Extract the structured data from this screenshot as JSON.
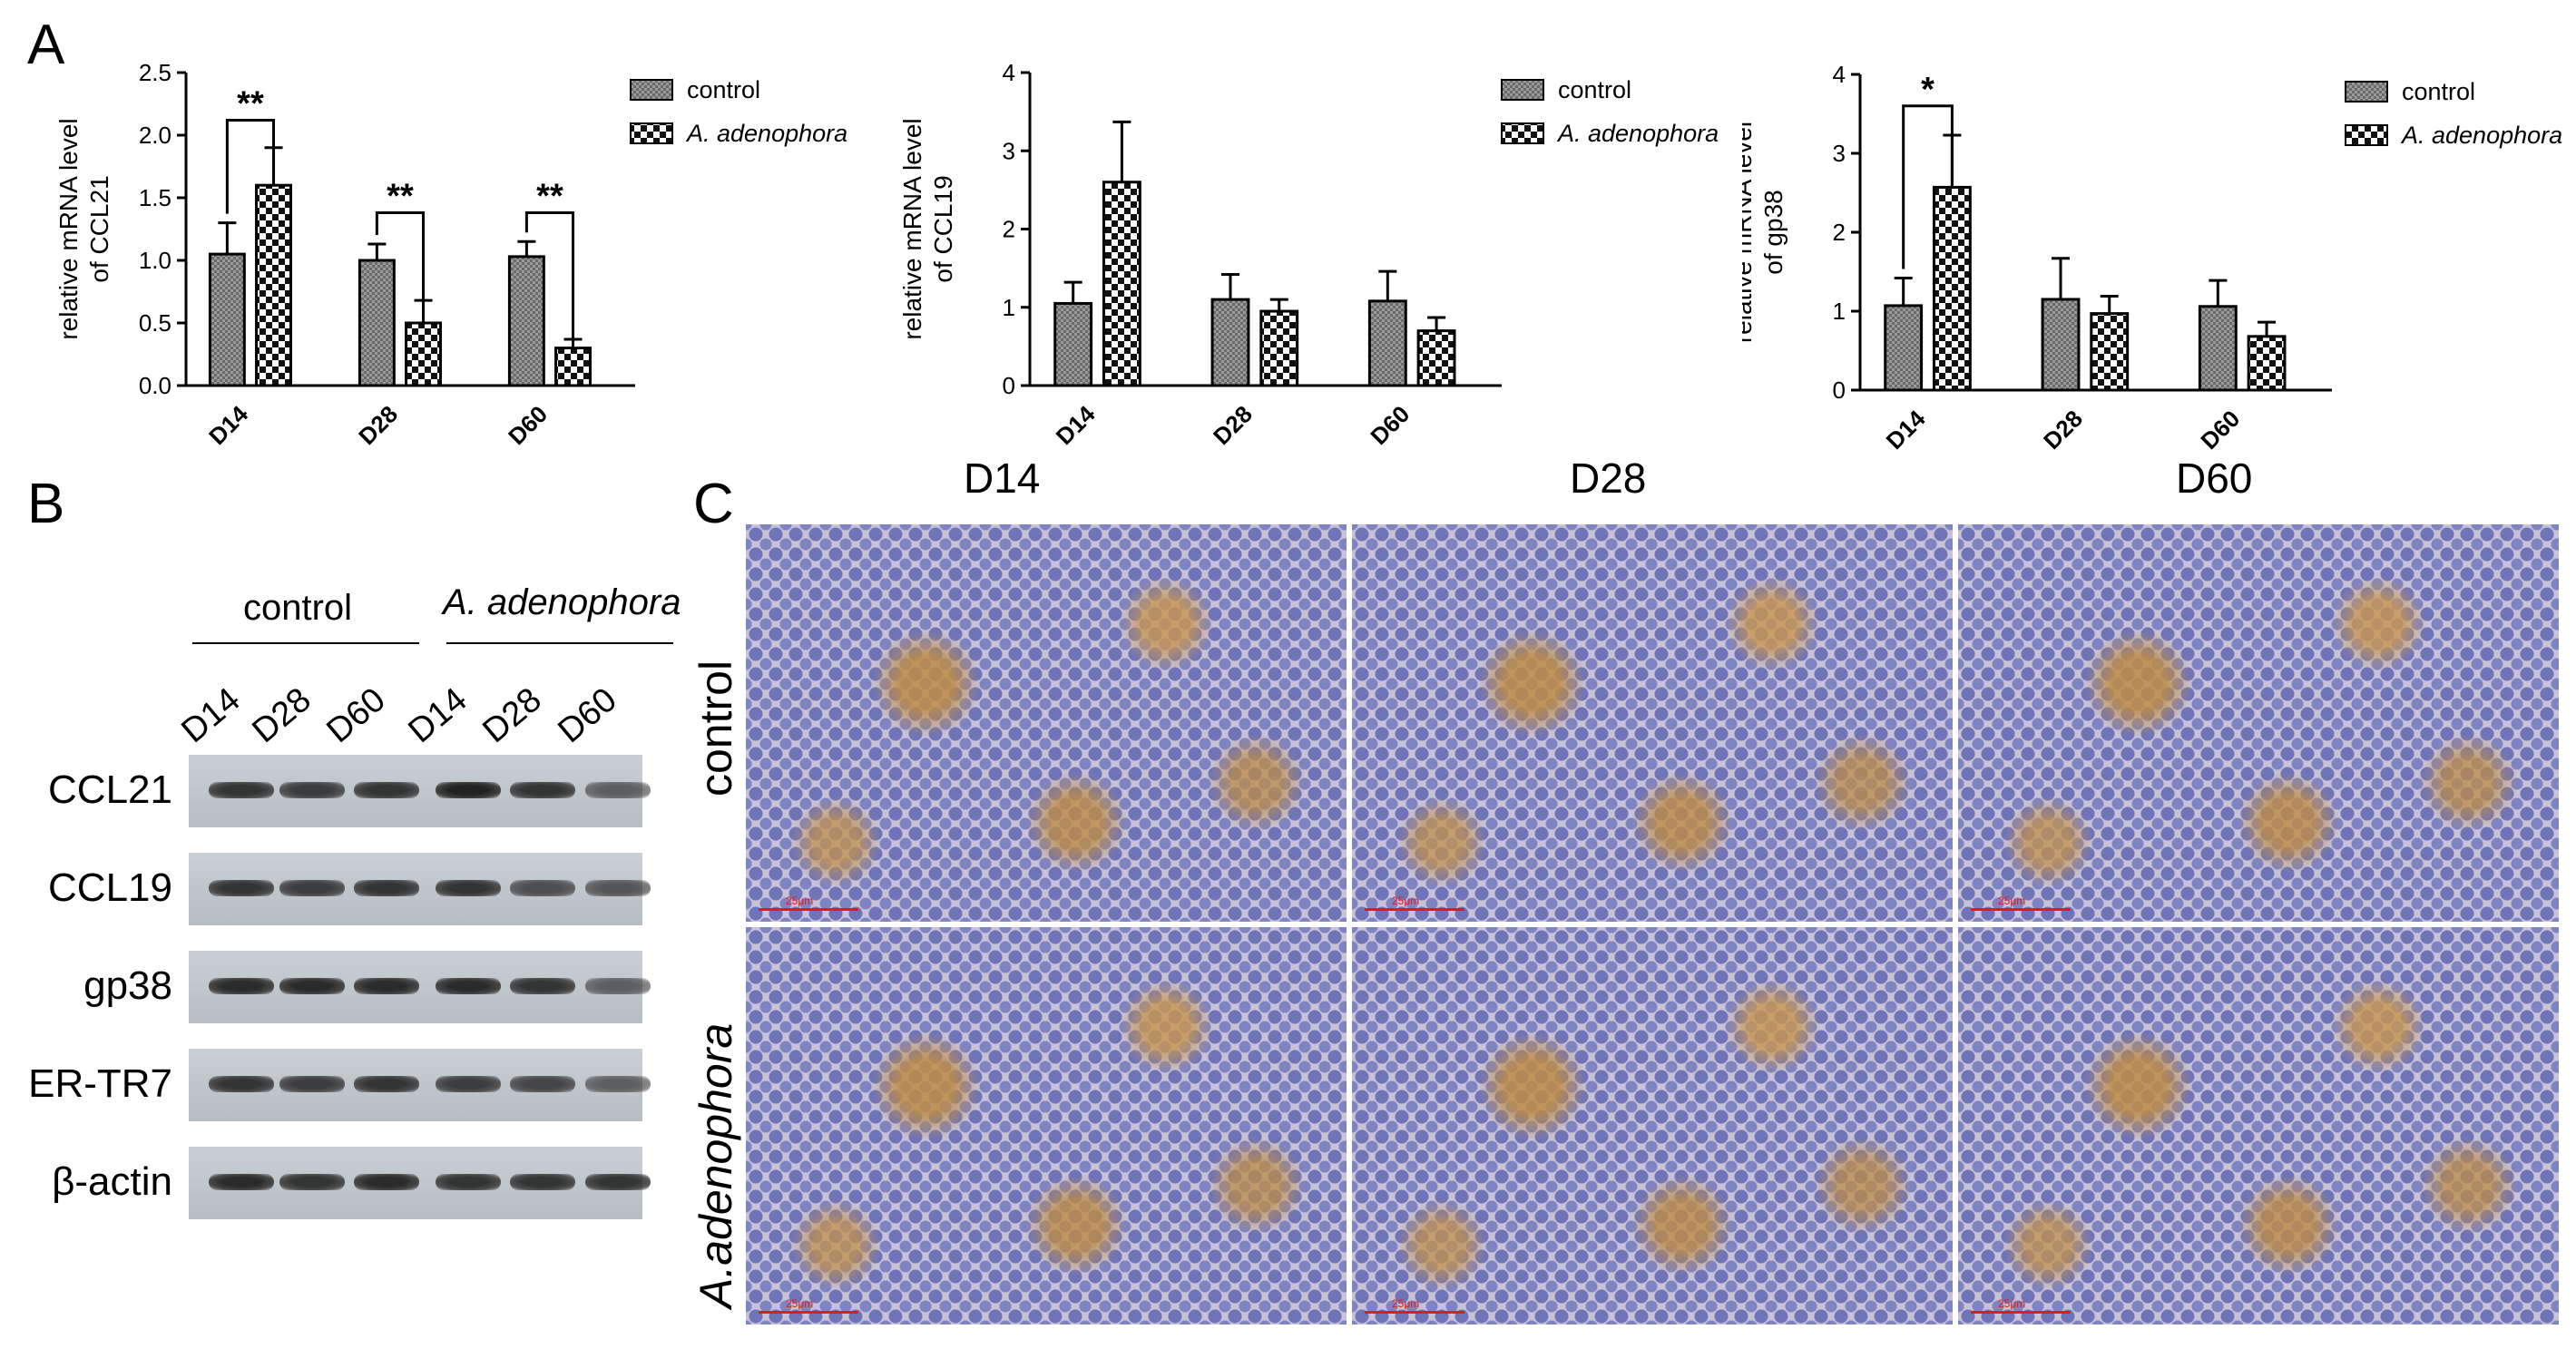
{
  "panel_labels": {
    "a": "A",
    "b": "B",
    "c": "C"
  },
  "colors": {
    "control_fill": "#8f8f8f",
    "treated_fill": "#ffffff",
    "stroke": "#000000",
    "scalebar": "#e21a1a"
  },
  "chart_data": [
    {
      "type": "bar",
      "categories": [
        "D14",
        "D28",
        "D60"
      ],
      "series": [
        {
          "name": "control",
          "values": [
            1.05,
            1.0,
            1.03
          ],
          "errors": [
            0.25,
            0.13,
            0.12
          ]
        },
        {
          "name": "A. adenophora",
          "values": [
            1.6,
            0.5,
            0.3
          ],
          "errors": [
            0.3,
            0.18,
            0.07
          ]
        }
      ],
      "ylabel_line1": "relative mRNA level",
      "ylabel_line2": "of CCL21",
      "ylim": [
        0,
        2.5
      ],
      "yticks": [
        "0.0",
        "0.5",
        "1.0",
        "1.5",
        "2.0",
        "2.5"
      ],
      "significance": [
        {
          "category": "D14",
          "label": "**",
          "y": 2.12
        },
        {
          "category": "D28",
          "label": "**",
          "y": 1.38
        },
        {
          "category": "D60",
          "label": "**",
          "y": 1.38
        }
      ],
      "legend": {
        "placement": "top-right",
        "entries": [
          "control",
          "A. adenophora"
        ]
      }
    },
    {
      "type": "bar",
      "categories": [
        "D14",
        "D28",
        "D60"
      ],
      "series": [
        {
          "name": "control",
          "values": [
            1.05,
            1.1,
            1.08
          ],
          "errors": [
            0.27,
            0.32,
            0.38
          ]
        },
        {
          "name": "A. adenophora",
          "values": [
            2.6,
            0.95,
            0.7
          ],
          "errors": [
            0.77,
            0.15,
            0.17
          ]
        }
      ],
      "ylabel_line1": "relative mRNA level",
      "ylabel_line2": "of CCL19",
      "ylim": [
        0,
        4
      ],
      "yticks": [
        "0",
        "1",
        "2",
        "3",
        "4"
      ],
      "significance": [],
      "legend": {
        "placement": "top-right",
        "entries": [
          "control",
          "A. adenophora"
        ]
      }
    },
    {
      "type": "bar",
      "categories": [
        "D14",
        "D28",
        "D60"
      ],
      "series": [
        {
          "name": "control",
          "values": [
            1.07,
            1.15,
            1.06
          ],
          "errors": [
            0.35,
            0.52,
            0.33
          ]
        },
        {
          "name": "A. adenophora",
          "values": [
            2.57,
            0.97,
            0.68
          ],
          "errors": [
            0.66,
            0.22,
            0.18
          ]
        }
      ],
      "ylabel_line1": "relative mRNA level",
      "ylabel_line2": "of gp38",
      "ylim": [
        0,
        4
      ],
      "yticks": [
        "0",
        "1",
        "2",
        "3",
        "4"
      ],
      "significance": [
        {
          "category": "D14",
          "label": "*",
          "y": 3.6
        }
      ],
      "legend": {
        "placement": "top-right",
        "entries": [
          "control",
          "A. adenophora"
        ]
      }
    }
  ],
  "western_blot": {
    "groups": [
      "control",
      "A. adenophora"
    ],
    "lanes": [
      "D14",
      "D28",
      "D60",
      "D14",
      "D28",
      "D60"
    ],
    "blots": [
      {
        "label": "CCL21",
        "intensity": [
          0.85,
          0.8,
          0.85,
          0.95,
          0.85,
          0.6
        ]
      },
      {
        "label": "CCL19",
        "intensity": [
          0.85,
          0.8,
          0.85,
          0.85,
          0.7,
          0.65
        ]
      },
      {
        "label": "gp38",
        "intensity": [
          0.9,
          0.9,
          0.9,
          0.9,
          0.85,
          0.6
        ]
      },
      {
        "label": "ER-TR7",
        "intensity": [
          0.85,
          0.8,
          0.85,
          0.8,
          0.75,
          0.6
        ]
      },
      {
        "label": "β-actin",
        "intensity": [
          0.9,
          0.85,
          0.9,
          0.85,
          0.85,
          0.85
        ]
      }
    ]
  },
  "ihc": {
    "columns": [
      "D14",
      "D28",
      "D60"
    ],
    "rows": [
      "control",
      "A.adenophora"
    ],
    "scale_text": "25μm"
  }
}
